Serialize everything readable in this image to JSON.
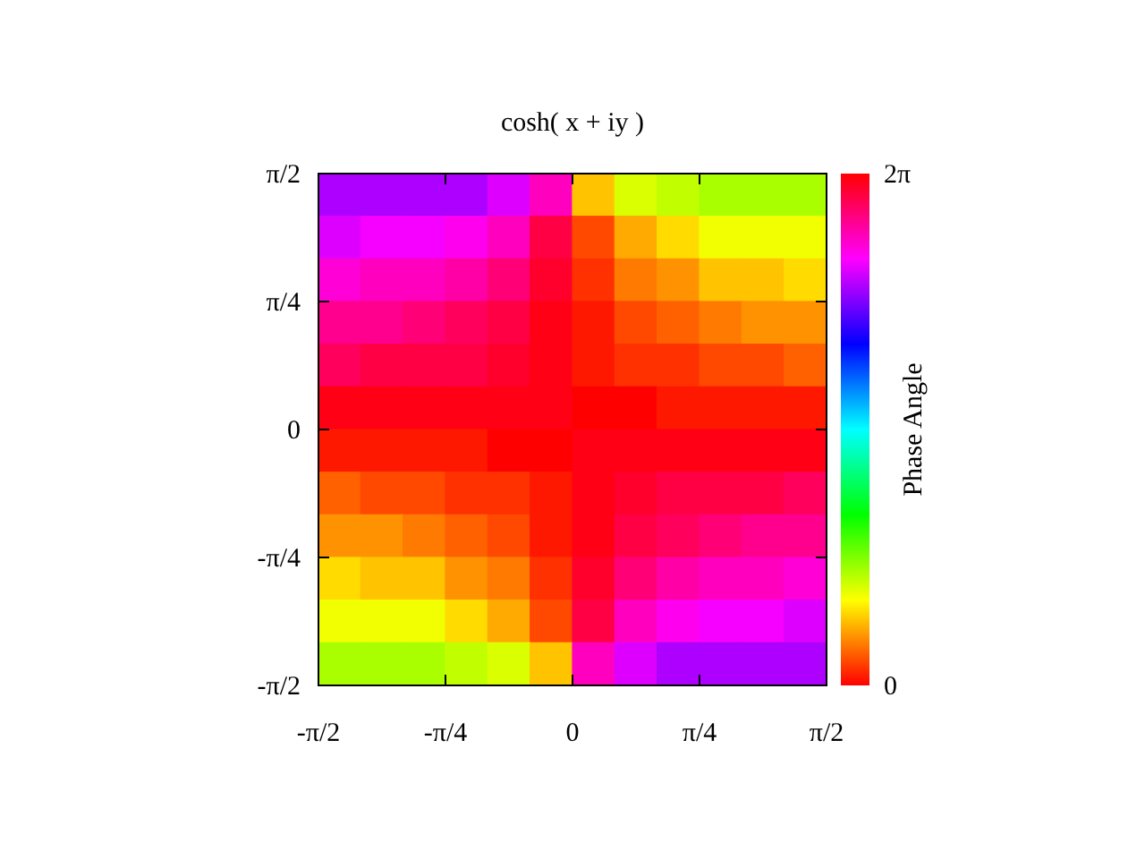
{
  "chart_data": {
    "type": "heatmap",
    "title": "cosh( x + iy )",
    "clabel": "Phase Angle",
    "xlim": [
      -1.5708,
      1.5708
    ],
    "ylim": [
      -1.5708,
      1.5708
    ],
    "xticks": [
      {
        "value": -1.5708,
        "label": "-π/2"
      },
      {
        "value": -0.7854,
        "label": "-π/4"
      },
      0,
      {
        "value": 0.7854,
        "label": "π/4"
      },
      {
        "value": 1.5708,
        "label": "π/2"
      }
    ],
    "yticks": [
      {
        "value": -1.5708,
        "label": "-π/2"
      },
      {
        "value": -0.7854,
        "label": "-π/4"
      },
      0,
      {
        "value": 0.7854,
        "label": "π/4"
      },
      {
        "value": 1.5708,
        "label": "π/2"
      }
    ],
    "clim": [
      0,
      6.2832
    ],
    "cticks": [
      0,
      {
        "value": 6.2832,
        "label": "2π"
      }
    ],
    "cells": [
      [
        4.9,
        4.9,
        4.9,
        4.9,
        5.1,
        5.5,
        0.8,
        1.2,
        1.3,
        1.4,
        1.4,
        1.4
      ],
      [
        5.1,
        5.2,
        5.2,
        5.3,
        5.5,
        6.0,
        0.3,
        0.7,
        0.9,
        1.1,
        1.1,
        1.1
      ],
      [
        5.4,
        5.5,
        5.5,
        5.6,
        5.8,
        6.1,
        0.2,
        0.5,
        0.6,
        0.8,
        0.8,
        0.9
      ],
      [
        5.7,
        5.7,
        5.8,
        5.9,
        6.0,
        6.2,
        0.1,
        0.3,
        0.4,
        0.5,
        0.6,
        0.6
      ],
      [
        5.9,
        6.0,
        6.0,
        6.0,
        6.1,
        6.2,
        0.1,
        0.2,
        0.2,
        0.3,
        0.3,
        0.4
      ],
      [
        6.2,
        6.2,
        6.2,
        6.2,
        6.2,
        6.2,
        0.0,
        0.0,
        0.1,
        0.1,
        0.1,
        0.1
      ],
      [
        0.1,
        0.1,
        0.1,
        0.1,
        0.0,
        0.0,
        6.2,
        6.2,
        6.2,
        6.2,
        6.2,
        6.2
      ],
      [
        0.4,
        0.3,
        0.3,
        0.2,
        0.2,
        0.1,
        6.2,
        6.1,
        6.0,
        6.0,
        6.0,
        5.9
      ],
      [
        0.6,
        0.6,
        0.5,
        0.4,
        0.3,
        0.1,
        6.2,
        6.0,
        5.9,
        5.8,
        5.7,
        5.7
      ],
      [
        0.9,
        0.8,
        0.8,
        0.6,
        0.5,
        0.2,
        6.1,
        5.8,
        5.6,
        5.5,
        5.5,
        5.4
      ],
      [
        1.1,
        1.1,
        1.1,
        0.9,
        0.7,
        0.3,
        6.0,
        5.5,
        5.3,
        5.2,
        5.2,
        5.1
      ],
      [
        1.4,
        1.4,
        1.4,
        1.3,
        1.2,
        0.8,
        5.5,
        5.1,
        4.9,
        4.9,
        4.9,
        4.9
      ]
    ]
  }
}
